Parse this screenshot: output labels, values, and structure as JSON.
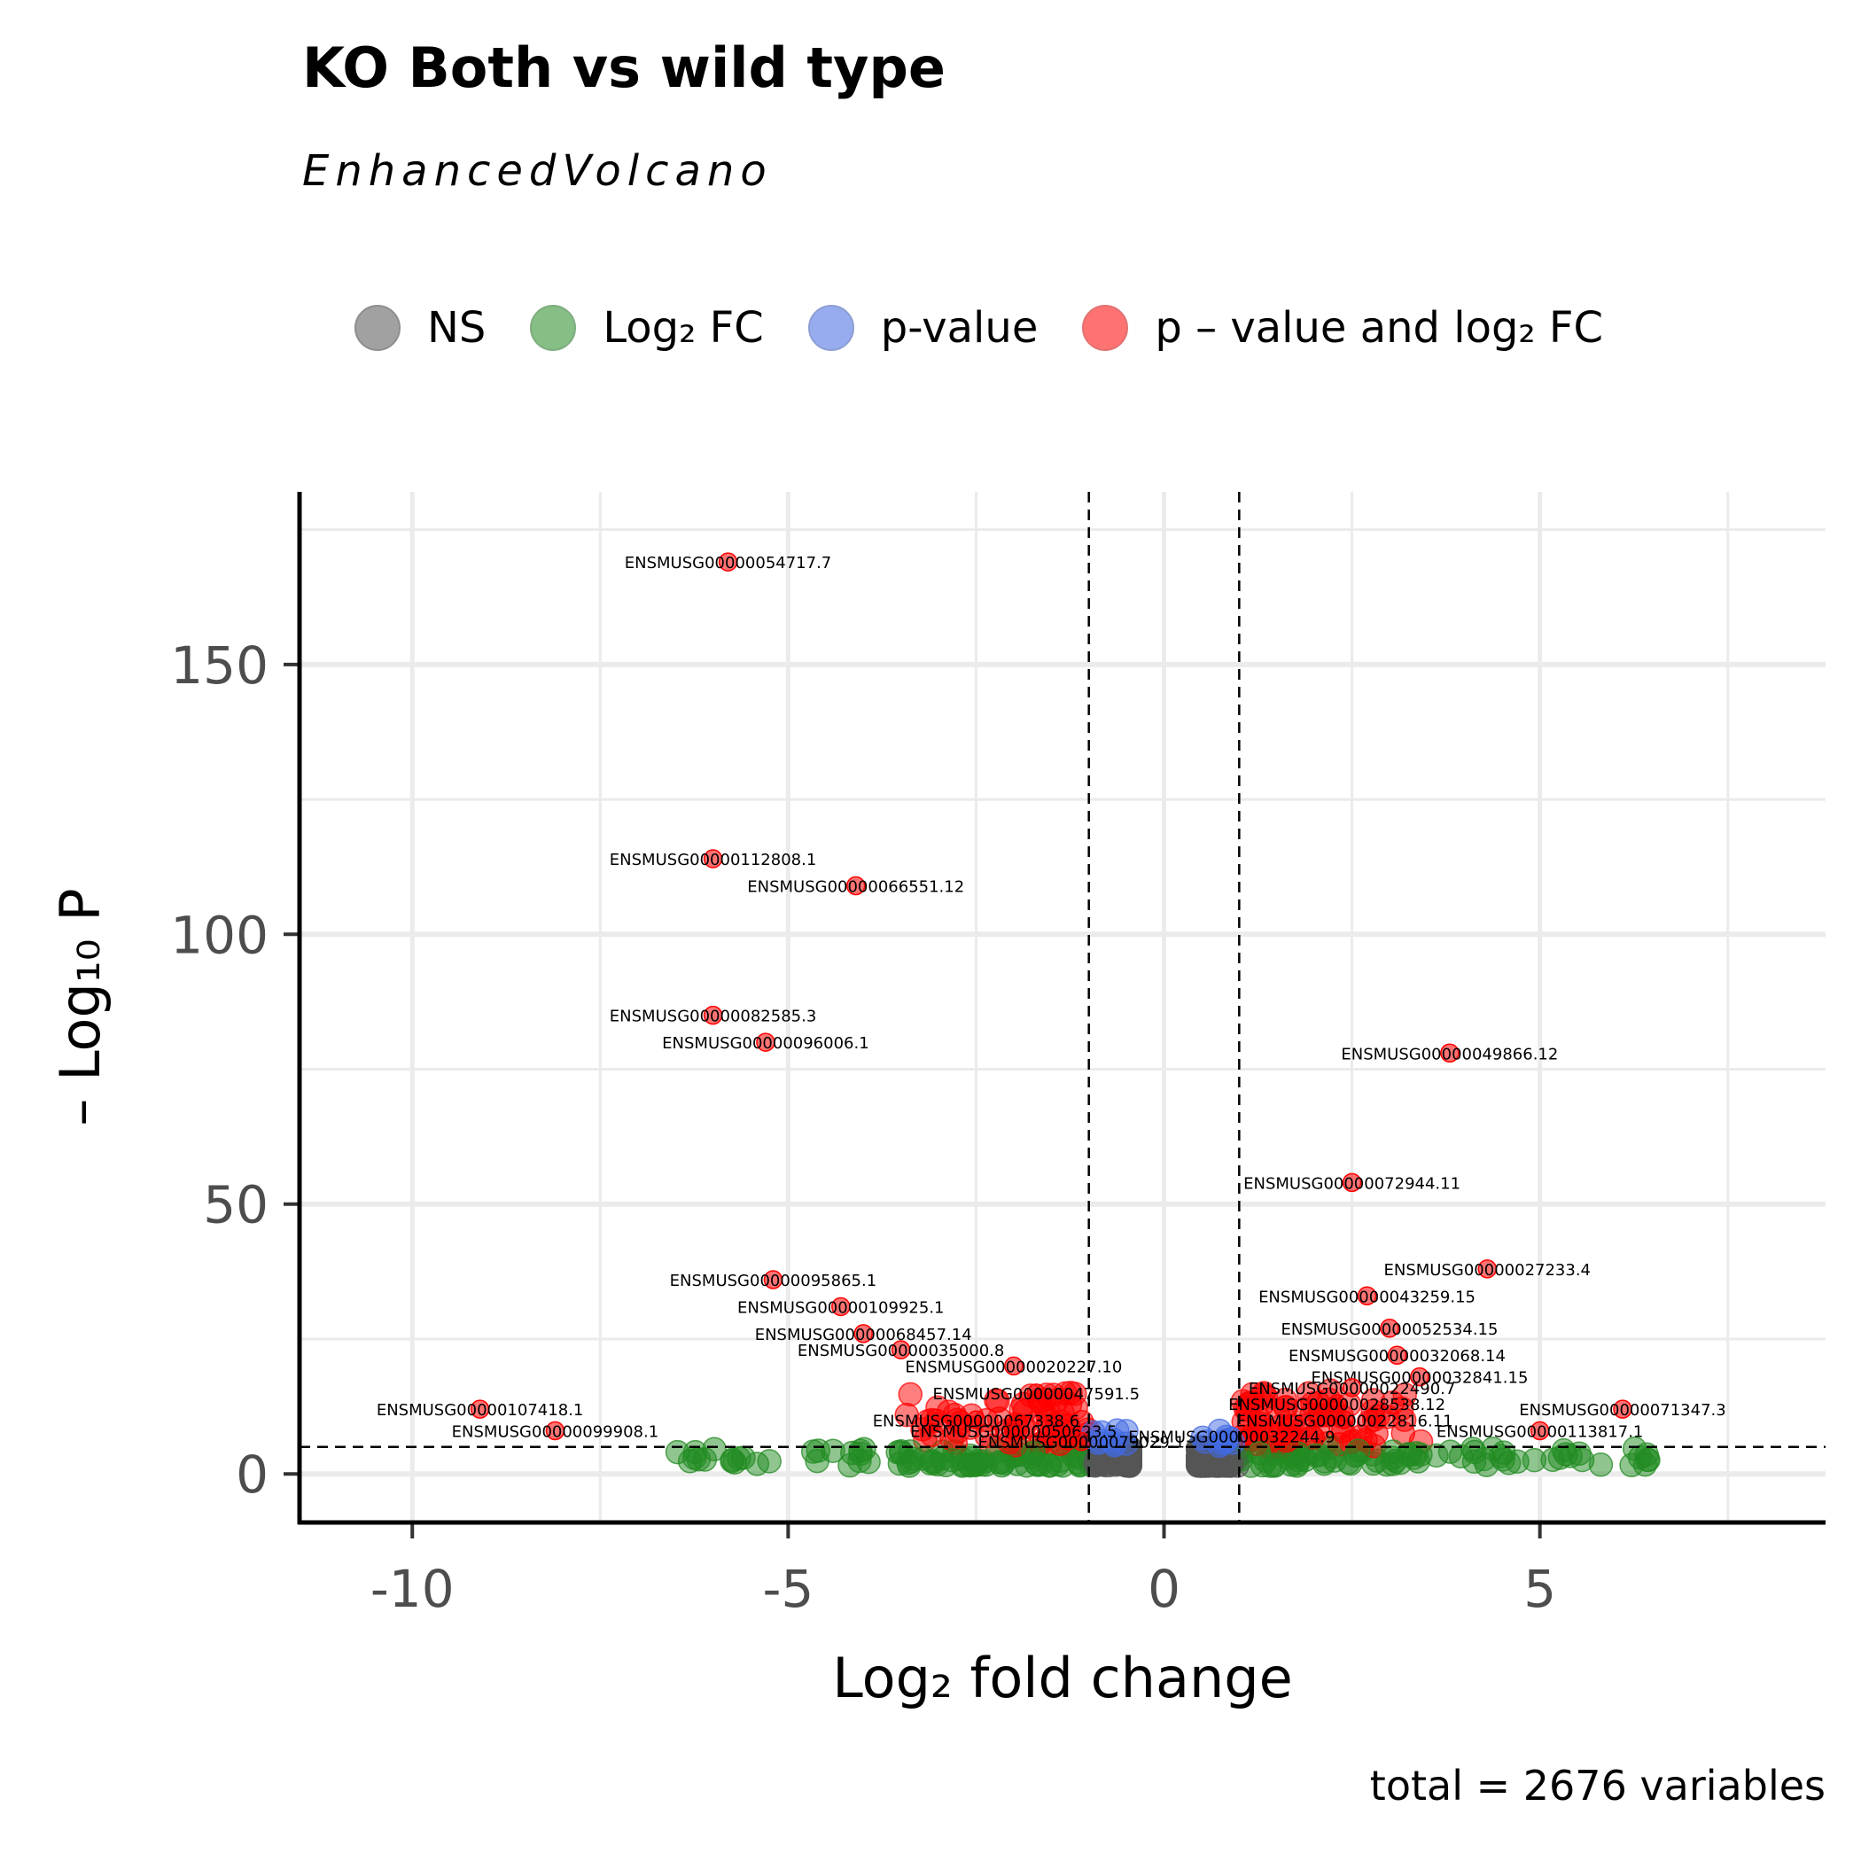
{
  "chart_data": {
    "type": "scatter",
    "title": "KO Both vs wild type",
    "subtitle": "EnhancedVolcano",
    "xlabel": "Log₂ fold change",
    "ylabel": "– Log₁₀ P",
    "caption": "total = 2676 variables",
    "xlim": [
      -11.5,
      8.8
    ],
    "ylim": [
      -9,
      182
    ],
    "x_ticks": [
      "-10",
      "-5",
      "0",
      "5"
    ],
    "y_ticks": [
      "0",
      "50",
      "100",
      "150"
    ],
    "fc_cutoff": 1,
    "p_cutoff_log10": 5,
    "grid": true,
    "legend_position": "top",
    "legend": [
      {
        "key": "NS",
        "label": "NS",
        "color": "#555555"
      },
      {
        "key": "FC",
        "label": "Log₂ FC",
        "color": "#228B22"
      },
      {
        "key": "P",
        "label": "p-value",
        "color": "#4169E1"
      },
      {
        "key": "FC_P",
        "label": "p – value and log₂ FC",
        "color": "#FF0000"
      }
    ],
    "labeled_points": [
      {
        "label": "ENSMUSG00000054717.7",
        "x": -5.8,
        "y": 169
      },
      {
        "label": "ENSMUSG00000112808.1",
        "x": -6.0,
        "y": 114
      },
      {
        "label": "ENSMUSG00000066551.12",
        "x": -4.1,
        "y": 109
      },
      {
        "label": "ENSMUSG00000082585.3",
        "x": -6.0,
        "y": 85
      },
      {
        "label": "ENSMUSG00000096006.1",
        "x": -5.3,
        "y": 80
      },
      {
        "label": "ENSMUSG00000049866.12",
        "x": 3.8,
        "y": 78
      },
      {
        "label": "ENSMUSG00000072944.11",
        "x": 2.5,
        "y": 54
      },
      {
        "label": "ENSMUSG00000027233.4",
        "x": 4.3,
        "y": 38
      },
      {
        "label": "ENSMUSG00000095865.1",
        "x": -5.2,
        "y": 36
      },
      {
        "label": "ENSMUSG00000043259.15",
        "x": 2.7,
        "y": 33
      },
      {
        "label": "ENSMUSG00000109925.1",
        "x": -4.3,
        "y": 31
      },
      {
        "label": "ENSMUSG00000052534.15",
        "x": 3.0,
        "y": 27
      },
      {
        "label": "ENSMUSG00000068457.14",
        "x": -4.0,
        "y": 26
      },
      {
        "label": "ENSMUSG00000035000.8",
        "x": -3.5,
        "y": 23
      },
      {
        "label": "ENSMUSG00000032068.14",
        "x": 3.1,
        "y": 22
      },
      {
        "label": "ENSMUSG00000020227.10",
        "x": -2.0,
        "y": 20
      },
      {
        "label": "ENSMUSG00000032841.15",
        "x": 3.4,
        "y": 18
      },
      {
        "label": "ENSMUSG00000022490.7",
        "x": 2.5,
        "y": 16
      },
      {
        "label": "ENSMUSG00000047591.5",
        "x": -1.7,
        "y": 15
      },
      {
        "label": "ENSMUSG00000028538.12",
        "x": 2.3,
        "y": 13
      },
      {
        "label": "ENSMUSG00000071347.3",
        "x": 6.1,
        "y": 12
      },
      {
        "label": "ENSMUSG00000107418.1",
        "x": -9.1,
        "y": 12
      },
      {
        "label": "ENSMUSG00000022816.11",
        "x": 2.4,
        "y": 10
      },
      {
        "label": "ENSMUSG00000067338.6",
        "x": -2.5,
        "y": 10
      },
      {
        "label": "ENSMUSG00000099908.1",
        "x": -8.1,
        "y": 8
      },
      {
        "label": "ENSMUSG00000113817.1",
        "x": 5.0,
        "y": 8
      },
      {
        "label": "ENSMUSG00000050623.5",
        "x": -2.0,
        "y": 8
      },
      {
        "label": "ENSMUSG00000032244.9",
        "x": 0.9,
        "y": 7
      },
      {
        "label": "ENSMUSG00000079029.1",
        "x": -1.1,
        "y": 6
      }
    ]
  }
}
